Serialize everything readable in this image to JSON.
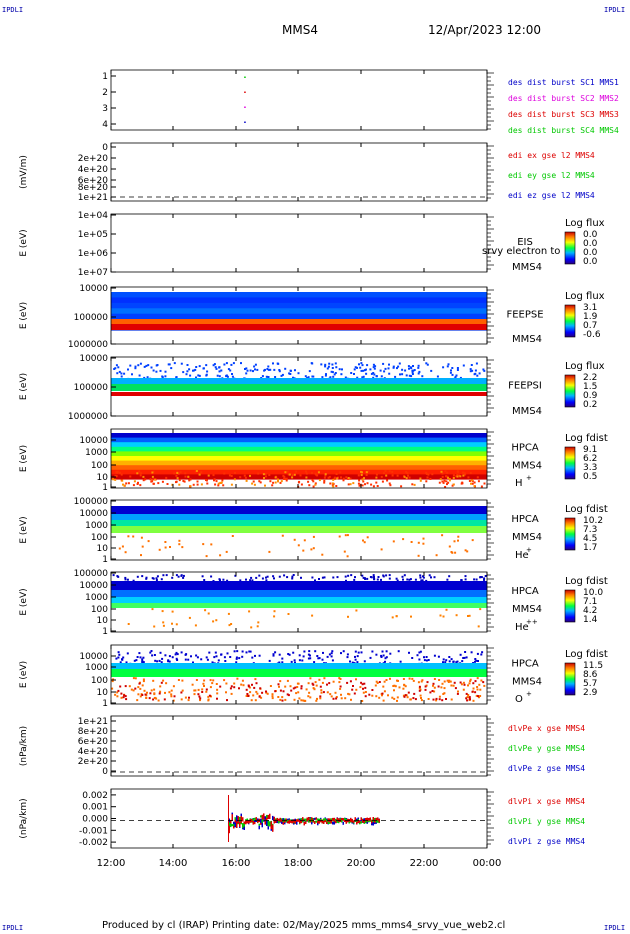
{
  "corners": {
    "tl": "IPDLI",
    "tr": "IPDLI",
    "bl": "IPDLI",
    "br": "IPDLI"
  },
  "header": {
    "spacecraft": "MMS4",
    "datetime": "12/Apr/2023 12:00"
  },
  "footer": {
    "text": "Produced by cl (IRAP)   Printing date: 02/May/2025   mms_mms4_srvy_vue_web2.cl"
  },
  "colors": {
    "blue": "#0000c8",
    "magenta": "#dd00dd",
    "red": "#dd0000",
    "green": "#00c800",
    "black": "#000000"
  },
  "chart_data": [
    {
      "type": "scatter",
      "ylim": [
        0.5,
        4.5
      ],
      "yticks": [
        "1",
        "2",
        "3",
        "4"
      ],
      "ylabel": "",
      "legend": [
        {
          "text": "des dist burst SC1 MMS1",
          "color": "#0000c8"
        },
        {
          "text": "des dist burst SC2 MMS2",
          "color": "#dd00dd"
        },
        {
          "text": "des dist burst SC3 MMS3",
          "color": "#dd0000"
        },
        {
          "text": "des dist burst SC4 MMS4",
          "color": "#00c800"
        }
      ],
      "series": [
        {
          "name": "des dist burst SC1 MMS1",
          "x": [
            "16:15"
          ],
          "y": [
            1
          ]
        },
        {
          "name": "des dist burst SC2 MMS2",
          "x": [
            "16:15"
          ],
          "y": [
            2
          ]
        },
        {
          "name": "des dist burst SC3 MMS3",
          "x": [
            "16:15"
          ],
          "y": [
            3
          ]
        },
        {
          "name": "des dist burst SC4 MMS4",
          "x": [
            "16:15"
          ],
          "y": [
            4
          ]
        }
      ]
    },
    {
      "type": "line",
      "ylabel": "(mV/m)",
      "yticks": [
        "0",
        "2e+20",
        "4e+20",
        "6e+20",
        "8e+20",
        "1e+21"
      ],
      "legend": [
        {
          "text": "edi ex gse l2 MMS4",
          "color": "#dd0000"
        },
        {
          "text": "edi ey gse l2 MMS4",
          "color": "#00c800"
        },
        {
          "text": "edi ez gse l2 MMS4",
          "color": "#0000c8"
        }
      ],
      "series": []
    },
    {
      "type": "heatmap",
      "ylabel": "E (eV)",
      "yticks": [
        "1e+04",
        "1e+05",
        "1e+06",
        "1e+07"
      ],
      "labels": [
        "EIS",
        "MMS4"
      ],
      "overlay": "srvy electron to",
      "colorbar": {
        "title": "Log flux",
        "ticks": [
          "0.0",
          "0.0",
          "0.0",
          "0.0"
        ]
      }
    },
    {
      "type": "heatmap",
      "ylabel": "E (eV)",
      "yticks": [
        "10000",
        "100000",
        "1000000"
      ],
      "labels": [
        "FEEPSE",
        "MMS4"
      ],
      "colorbar": {
        "title": "Log flux",
        "ticks": [
          "3.1",
          "1.9",
          "0.7",
          "-0.6"
        ]
      },
      "xrange": [
        "12:00",
        "00:00"
      ]
    },
    {
      "type": "heatmap",
      "ylabel": "E (eV)",
      "yticks": [
        "10000",
        "100000",
        "1000000"
      ],
      "labels": [
        "FEEPSI",
        "MMS4"
      ],
      "colorbar": {
        "title": "Log flux",
        "ticks": [
          "2.2",
          "1.5",
          "0.9",
          "0.2"
        ]
      },
      "xrange": [
        "12:00",
        "00:00"
      ]
    },
    {
      "type": "heatmap",
      "ylabel": "E (eV)",
      "yticks": [
        "1",
        "10",
        "100",
        "1000",
        "10000"
      ],
      "labels": [
        "HPCA",
        "MMS4"
      ],
      "species": "H",
      "charge": "+",
      "colorbar": {
        "title": "Log fdist",
        "ticks": [
          "9.1",
          "6.2",
          "3.3",
          "0.5"
        ]
      },
      "xrange": [
        "12:00",
        "00:00"
      ]
    },
    {
      "type": "heatmap",
      "ylabel": "E (eV)",
      "yticks": [
        "1",
        "10",
        "100",
        "1000",
        "10000",
        "100000"
      ],
      "labels": [
        "HPCA",
        "MMS4"
      ],
      "species": "He",
      "charge": "+",
      "colorbar": {
        "title": "Log fdist",
        "ticks": [
          "10.2",
          "7.3",
          "4.5",
          "1.7"
        ]
      },
      "xrange": [
        "12:00",
        "00:00"
      ]
    },
    {
      "type": "heatmap",
      "ylabel": "E (eV)",
      "yticks": [
        "1",
        "10",
        "100",
        "1000",
        "10000",
        "100000"
      ],
      "labels": [
        "HPCA",
        "MMS4"
      ],
      "species": "He",
      "charge": "++",
      "colorbar": {
        "title": "Log fdist",
        "ticks": [
          "10.0",
          "7.1",
          "4.2",
          "1.4"
        ]
      },
      "xrange": [
        "12:00",
        "00:00"
      ]
    },
    {
      "type": "heatmap",
      "ylabel": "E (eV)",
      "yticks": [
        "1",
        "10",
        "100",
        "1000",
        "10000"
      ],
      "labels": [
        "HPCA",
        "MMS4"
      ],
      "species": "O",
      "charge": "+",
      "colorbar": {
        "title": "Log fdist",
        "ticks": [
          "11.5",
          "8.6",
          "5.7",
          "2.9"
        ]
      },
      "xrange": [
        "12:00",
        "00:00"
      ]
    },
    {
      "type": "line",
      "ylabel": "(nPa/km)",
      "yticks": [
        "0",
        "2e+20",
        "4e+20",
        "6e+20",
        "8e+20",
        "1e+21"
      ],
      "legend": [
        {
          "text": "dlvPe x gse MMS4",
          "color": "#dd0000"
        },
        {
          "text": "dlvPe y gse MMS4",
          "color": "#00c800"
        },
        {
          "text": "dlvPe z gse MMS4",
          "color": "#0000c8"
        }
      ],
      "series": []
    },
    {
      "type": "line",
      "ylabel": "(nPa/km)",
      "yticks": [
        "-0.002",
        "-0.001",
        "0.000",
        "0.001",
        "0.002"
      ],
      "ylim": [
        -0.0025,
        0.0025
      ],
      "legend": [
        {
          "text": "dlvPi x gse MMS4",
          "color": "#dd0000"
        },
        {
          "text": "dlvPi y gse MMS4",
          "color": "#00c800"
        },
        {
          "text": "dlvPi z gse MMS4",
          "color": "#0000c8"
        }
      ],
      "data_span": [
        "15:45",
        "20:35"
      ],
      "xticks": [
        "12:00",
        "14:00",
        "16:00",
        "18:00",
        "20:00",
        "22:00",
        "00:00"
      ]
    }
  ]
}
